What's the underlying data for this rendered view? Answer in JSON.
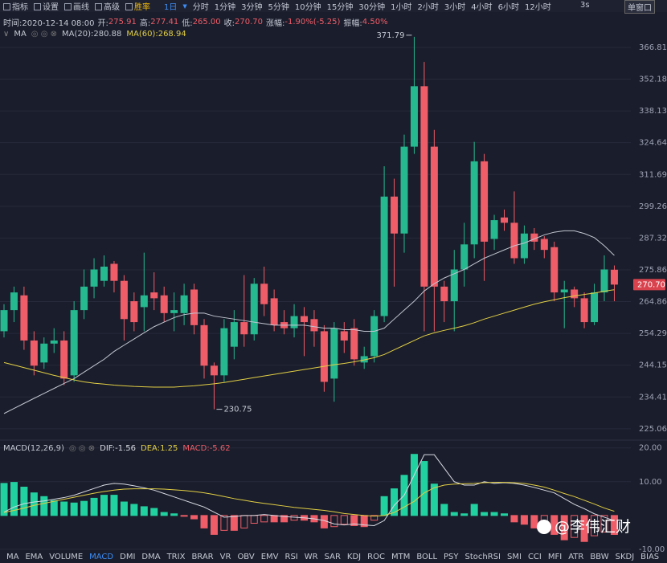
{
  "toolbar": {
    "tools": [
      "指标",
      "设置",
      "画线",
      "高级",
      "胜率"
    ],
    "period": "1日",
    "intervals": [
      "分时",
      "1分钟",
      "3分钟",
      "5分钟",
      "10分钟",
      "15分钟",
      "30分钟",
      "1小时",
      "2小时",
      "3小时",
      "4小时",
      "6小时",
      "12小时"
    ],
    "refresh": "3s",
    "window": "单窗口"
  },
  "info": {
    "time": "时间:2020-12-14 08:00",
    "fields": [
      {
        "label": "开:",
        "value": "275.91"
      },
      {
        "label": "高:",
        "value": "277.41"
      },
      {
        "label": "低:",
        "value": "265.00"
      },
      {
        "label": "收:",
        "value": "270.70"
      },
      {
        "label": "涨幅:",
        "value": "-1.90%(-5.25)"
      },
      {
        "label": "振幅:",
        "value": "4.50%"
      }
    ]
  },
  "chart_data": [
    {
      "type": "candlestick",
      "legend": "MA",
      "log_scale": true,
      "grid": true,
      "up_color": "#26b88f",
      "down_color": "#ef5d68",
      "open": [
        255,
        262,
        267,
        252,
        245,
        251,
        252,
        241,
        262,
        270,
        272,
        278,
        272,
        265,
        263,
        268,
        267,
        261,
        261,
        269,
        257,
        244,
        241,
        250,
        258,
        254,
        271,
        266,
        258,
        256,
        260,
        259,
        255,
        240,
        255,
        256,
        245,
        247,
        260,
        303,
        289,
        323,
        349,
        323,
        270,
        265,
        276,
        285,
        317,
        287,
        295,
        293,
        280,
        289,
        287,
        284,
        268,
        269,
        266,
        258,
        268,
        275.91
      ],
      "high": [
        264,
        270,
        270,
        255,
        253,
        256,
        255,
        265,
        276,
        280,
        281,
        279,
        274,
        268,
        282,
        275,
        270,
        268,
        271,
        271,
        259,
        245,
        259,
        262,
        274,
        273,
        277,
        269,
        262,
        264,
        263,
        262,
        257,
        258,
        258,
        259,
        250,
        262,
        315,
        310,
        328,
        371.79,
        360,
        330,
        272,
        283,
        293,
        325,
        320,
        296,
        298,
        305,
        292,
        291,
        288,
        286,
        272,
        270,
        268,
        271,
        281,
        277.41
      ],
      "low": [
        253,
        258,
        249,
        241,
        243,
        248,
        238,
        239,
        259,
        266,
        270,
        268,
        252,
        255,
        255,
        262,
        258,
        255,
        257,
        254,
        240,
        230.75,
        239,
        246,
        250,
        252,
        260,
        255,
        254,
        253,
        247,
        250,
        236,
        233,
        248,
        244,
        243,
        245,
        258,
        270,
        282,
        320,
        255,
        255,
        258,
        255,
        270,
        280,
        272,
        283,
        290,
        278,
        278,
        283,
        280,
        265,
        256,
        263,
        256,
        257,
        265,
        265.0
      ],
      "close": [
        262,
        268,
        252,
        244,
        251,
        252,
        240,
        262,
        270,
        276,
        277,
        272,
        259,
        258,
        267,
        266,
        261,
        262,
        267,
        257,
        244,
        241,
        256,
        258,
        254,
        271,
        264,
        257,
        256,
        260,
        258,
        255,
        239,
        256,
        252,
        246,
        247,
        260,
        303,
        289,
        323,
        349,
        270,
        270,
        265,
        276,
        285,
        317,
        286,
        294,
        293,
        280,
        289,
        286,
        283,
        268,
        269,
        266,
        258,
        268,
        276,
        270.7
      ],
      "last_price_label": "270.70",
      "series": [
        {
          "name": "MA(20):280.88",
          "color": "#c3c6d2",
          "values": [
            229.5,
            231,
            232.5,
            234,
            235.5,
            237,
            238.5,
            240,
            242,
            244,
            246,
            248.5,
            250.5,
            252.5,
            254.5,
            256.5,
            258,
            259.5,
            260.5,
            261,
            261,
            260,
            259.5,
            259,
            258.5,
            258,
            257.5,
            257,
            257,
            257,
            257,
            256.5,
            256,
            256,
            255.5,
            255.5,
            255,
            255,
            256,
            259,
            262,
            265,
            268.5,
            271,
            273,
            274.5,
            276,
            278,
            280,
            281.5,
            283,
            284.5,
            285.5,
            287,
            288.5,
            289.5,
            290,
            290,
            289,
            287.5,
            284.5,
            281
          ]
        },
        {
          "name": "MA(60):268.94",
          "color": "#e2cf45",
          "values": [
            245,
            244.2,
            243.4,
            242.6,
            241.8,
            241,
            240.3,
            239.6,
            239,
            238.6,
            238.3,
            238,
            237.8,
            237.6,
            237.5,
            237.4,
            237.4,
            237.4,
            237.6,
            237.8,
            238.1,
            238.4,
            238.8,
            239.3,
            239.8,
            240.3,
            240.8,
            241.3,
            241.8,
            242.3,
            242.8,
            243.3,
            243.8,
            244.3,
            244.7,
            245.2,
            245.8,
            246.5,
            247.5,
            249,
            250.5,
            252,
            253.5,
            254.5,
            255.3,
            256,
            256.8,
            257.8,
            259,
            260,
            261,
            262,
            263,
            264,
            264.8,
            265.5,
            266.2,
            266.8,
            267.3,
            267.8,
            268.4,
            268.94
          ]
        }
      ],
      "ylim": [
        222.5,
        370.2
      ],
      "yticks": [
        366.81,
        352.18,
        338.13,
        324.64,
        311.69,
        299.26,
        287.32,
        275.86,
        264.86,
        254.29,
        244.15,
        234.41,
        225.06
      ]
    },
    {
      "type": "macd",
      "title": "MACD(12,26,9)",
      "grid": true,
      "up_color": "#22d1a0",
      "down_color": "#ef5d68",
      "histogram": {
        "name": "MACD:-5.62",
        "values": [
          9.5,
          9.8,
          8.4,
          6.7,
          5.6,
          4.4,
          4,
          3.7,
          4.2,
          5.1,
          6,
          6,
          4,
          3.3,
          2.6,
          2.1,
          0.9,
          0.5,
          -0.1,
          -1,
          -3.7,
          -5.6,
          -4.4,
          -4.4,
          -3.7,
          -2.3,
          -1.9,
          -1.9,
          -1.9,
          -1.4,
          -1.4,
          -1.9,
          -3.7,
          -3.3,
          -2.6,
          -3,
          -3.3,
          -1.4,
          5.6,
          7.9,
          11.9,
          18.1,
          16,
          9.3,
          3.3,
          0.9,
          0.5,
          3.3,
          0.9,
          0.9,
          0.5,
          -1.9,
          -2.6,
          -3.7,
          -3.3,
          -5.6,
          -7.2,
          -6.5,
          -7.7,
          -6,
          -4.9,
          -5.62
        ]
      },
      "series": [
        {
          "name": "DIF:-1.56",
          "color": "#d8dae3",
          "values": [
            1,
            2.5,
            3.5,
            4,
            4.3,
            4.8,
            5.3,
            6,
            7,
            8,
            9,
            9.5,
            9.3,
            8.8,
            8.2,
            7.5,
            6.5,
            5.5,
            4.5,
            3.5,
            2.5,
            1,
            -0.5,
            -0.3,
            0,
            0,
            0.3,
            0,
            -0.3,
            -0.5,
            -0.7,
            -1,
            -1.5,
            -2.5,
            -2.8,
            -2.5,
            -2.8,
            -3,
            -1.5,
            3,
            6,
            12,
            18,
            18,
            14,
            10,
            9,
            9,
            10,
            9.5,
            9.7,
            9.5,
            9,
            8.3,
            7.5,
            6.7,
            5,
            3.3,
            2,
            0.5,
            -0.5,
            -1.56
          ]
        },
        {
          "name": "DEA:1.25",
          "color": "#e2cf45",
          "values": [
            0.9,
            1.5,
            2.2,
            3,
            3.6,
            4.2,
            4.8,
            5.4,
            6,
            6.6,
            7.1,
            7.5,
            7.8,
            7.9,
            7.9,
            7.9,
            7.8,
            7.6,
            7.4,
            7.1,
            6.7,
            6.2,
            5.6,
            5,
            4.5,
            4,
            3.6,
            3.2,
            2.8,
            2.4,
            2.1,
            1.8,
            1.5,
            1.1,
            0.6,
            0.3,
            0,
            -0.2,
            0,
            0.9,
            2.5,
            4.2,
            6.7,
            8.2,
            9,
            9.3,
            9.4,
            9.5,
            9.7,
            9.8,
            9.8,
            9.7,
            9.5,
            9,
            8.4,
            7.5,
            6.5,
            5.6,
            4.5,
            3.4,
            2.2,
            1.25
          ]
        }
      ],
      "ylim": [
        -10.5,
        21.6
      ],
      "yticks": [
        {
          "value": 20,
          "label": "20.00"
        },
        {
          "value": 10,
          "label": "10.00"
        },
        {
          "value": -10,
          "label": "-10.00"
        }
      ]
    }
  ],
  "indicator_tabs": [
    "MA",
    "EMA",
    "VOLUME",
    "MACD",
    "DMI",
    "DMA",
    "TRIX",
    "BRAR",
    "VR",
    "OBV",
    "EMV",
    "RSI",
    "WR",
    "SAR",
    "KDJ",
    "ROC",
    "MTM",
    "BOLL",
    "PSY",
    "StochRSI",
    "SMI",
    "CCI",
    "MFI",
    "ATR",
    "BBW",
    "SKDJ",
    "BIAS"
  ],
  "active_tab": 3,
  "watermark": "@李伟汇财"
}
